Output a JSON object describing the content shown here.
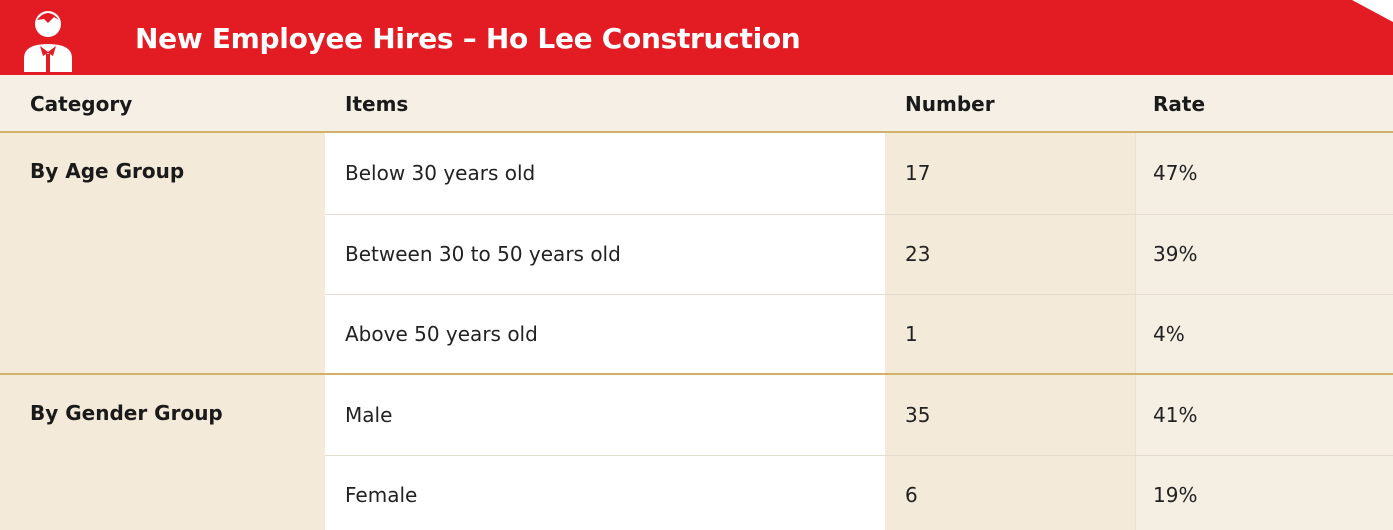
{
  "header": {
    "title": "New Employee Hires – Ho Lee Construction"
  },
  "table": {
    "columns": [
      "Category",
      "Items",
      "Number",
      "Rate"
    ],
    "groups": [
      {
        "category": "By Age Group",
        "rows": [
          [
            "Below 30 years old",
            "17",
            "47%"
          ],
          [
            "Between 30 to 50 years old",
            "23",
            "39%"
          ],
          [
            "Above 50 years old",
            "1",
            "4%"
          ]
        ]
      },
      {
        "category": "By Gender Group",
        "rows": [
          [
            "Male",
            "35",
            "41%"
          ],
          [
            "Female",
            "6",
            "19%"
          ]
        ]
      }
    ]
  }
}
